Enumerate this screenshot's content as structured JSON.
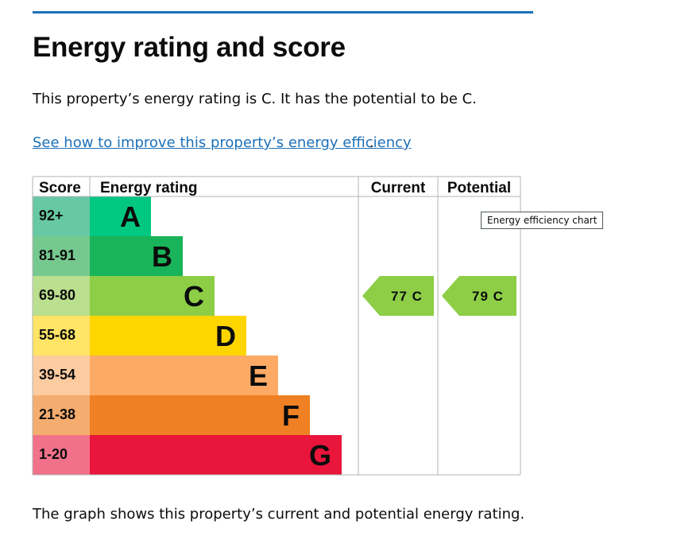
{
  "page": {
    "heading": "Energy rating and score",
    "intro": "This property’s energy rating is C. It has the potential to be C.",
    "improve_link": "See how to improve this property’s energy efficiency",
    "improve_link_suffix": ".",
    "caption": "The graph shows this property’s current and potential energy rating.",
    "tooltip": "Energy efficiency chart"
  },
  "chart_data": {
    "type": "bar",
    "headers": {
      "score": "Score",
      "rating": "Energy rating",
      "current": "Current",
      "potential": "Potential"
    },
    "bands": [
      {
        "score": "92+",
        "letter": "A",
        "bar_color": "#00c781",
        "score_bg": "#67c9a4"
      },
      {
        "score": "81-91",
        "letter": "B",
        "bar_color": "#19b459",
        "score_bg": "#75c98f"
      },
      {
        "score": "69-80",
        "letter": "C",
        "bar_color": "#8dce46",
        "score_bg": "#badf8e"
      },
      {
        "score": "55-68",
        "letter": "D",
        "bar_color": "#ffd500",
        "score_bg": "#ffe466"
      },
      {
        "score": "39-54",
        "letter": "E",
        "bar_color": "#fcaa65",
        "score_bg": "#fdcba0"
      },
      {
        "score": "21-38",
        "letter": "F",
        "bar_color": "#ef8023",
        "score_bg": "#f5ac6f"
      },
      {
        "score": "1-20",
        "letter": "G",
        "bar_color": "#e9153b",
        "score_bg": "#f2718a"
      }
    ],
    "current": {
      "score": 77,
      "letter": "C",
      "label": "77 C",
      "color": "#8dce46"
    },
    "potential": {
      "score": 79,
      "letter": "C",
      "label": "79 C",
      "color": "#8dce46"
    }
  }
}
